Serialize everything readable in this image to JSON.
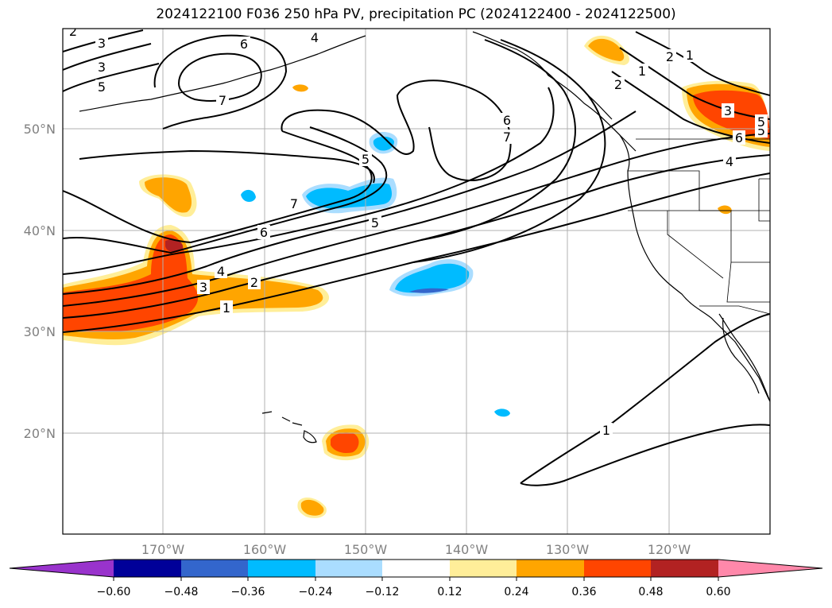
{
  "title": "2024122100 F036 250 hPa PV, precipitation PC (2024122400 - 2024122500)",
  "lat_labels": [
    "50°N",
    "40°N",
    "30°N",
    "20°N"
  ],
  "lon_labels": [
    "170°W",
    "160°W",
    "150°W",
    "140°W",
    "130°W",
    "120°W"
  ],
  "contour_labels": [
    "1",
    "2",
    "3",
    "4",
    "5",
    "6",
    "7",
    "6",
    "7",
    "5",
    "4",
    "3",
    "2",
    "1",
    "5",
    "7",
    "6",
    "5",
    "4",
    "3",
    "2",
    "1",
    "2",
    "1",
    "3",
    "5",
    "6",
    "1"
  ],
  "colorbar": {
    "ticks": [
      "−0.60",
      "−0.48",
      "−0.36",
      "−0.24",
      "−0.12",
      "0.12",
      "0.24",
      "0.36",
      "0.48",
      "0.60"
    ],
    "colors": {
      "under": "#9933cc",
      "b1": "#000099",
      "b2": "#3366cc",
      "b3": "#00bbff",
      "b4": "#aaddff",
      "b5": "#ffffff",
      "b6": "#ffee99",
      "b7": "#ffa500",
      "b8": "#ff4500",
      "b9": "#b22222",
      "over": "#ff88aa"
    }
  },
  "colors": {
    "grid": "#b0b0b0",
    "contour": "#000000",
    "coast": "#000000"
  }
}
